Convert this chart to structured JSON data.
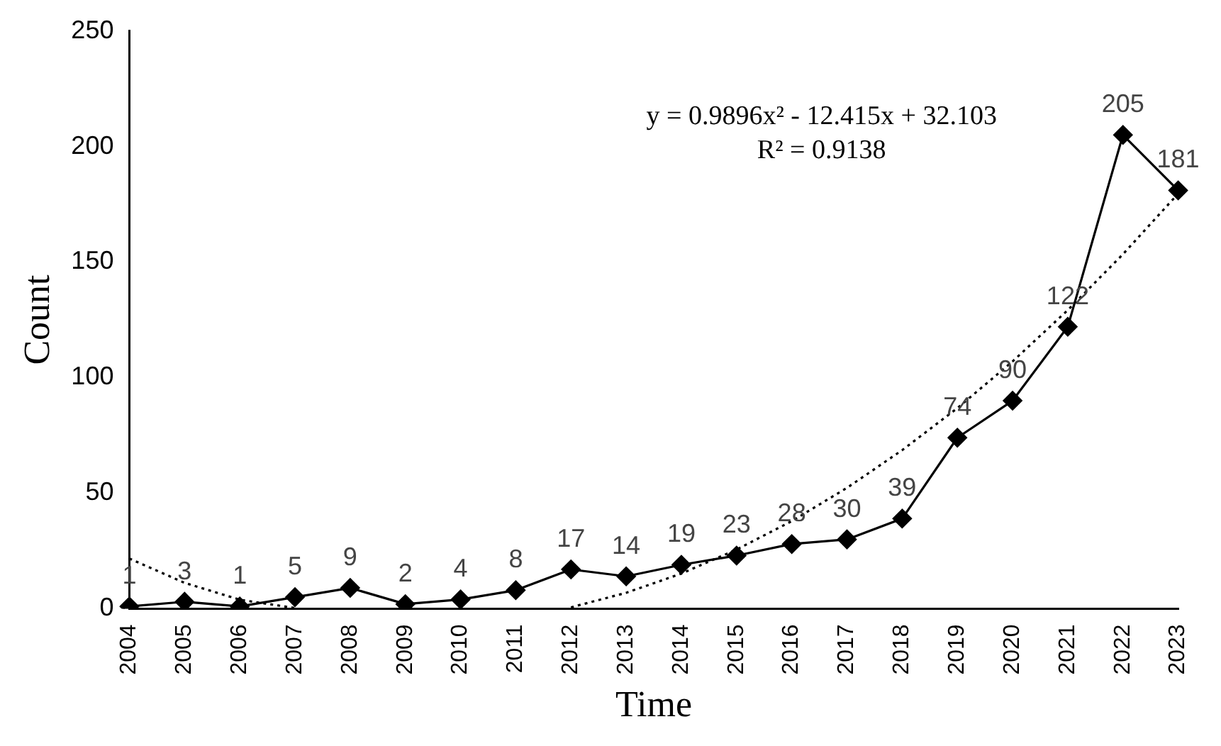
{
  "chart_data": {
    "type": "line",
    "xlabel": "Time",
    "ylabel": "Count",
    "categories": [
      "2004",
      "2005",
      "2006",
      "2007",
      "2008",
      "2009",
      "2010",
      "2011",
      "2012",
      "2013",
      "2014",
      "2015",
      "2016",
      "2017",
      "2018",
      "2019",
      "2020",
      "2021",
      "2022",
      "2023"
    ],
    "series": [
      {
        "color": "#000000",
        "values": [
          1,
          3,
          1,
          5,
          9,
          2,
          4,
          8,
          17,
          14,
          19,
          23,
          28,
          30,
          39,
          74,
          90,
          122,
          205,
          181
        ],
        "marker": "diamond",
        "line_style": "solid",
        "data_labels": true
      },
      {
        "type": "line",
        "color": "#000000",
        "values": [
          21.7,
          11.2,
          3.9,
          0.3,
          null,
          null,
          null,
          null,
          0.6,
          6.9,
          15.2,
          25.6,
          37.9,
          52.3,
          68.6,
          86.8,
          107.0,
          129.2,
          153.4,
          179.6
        ],
        "marker": "none",
        "line_style": "dotted"
      }
    ],
    "ylim": [
      0,
      250
    ],
    "yticks": [
      0,
      50,
      100,
      150,
      200,
      250
    ],
    "grid": false,
    "legend": false,
    "annotations": [
      "y = 0.9896x² - 12.415x + 32.103",
      "R² = 0.9138"
    ]
  }
}
